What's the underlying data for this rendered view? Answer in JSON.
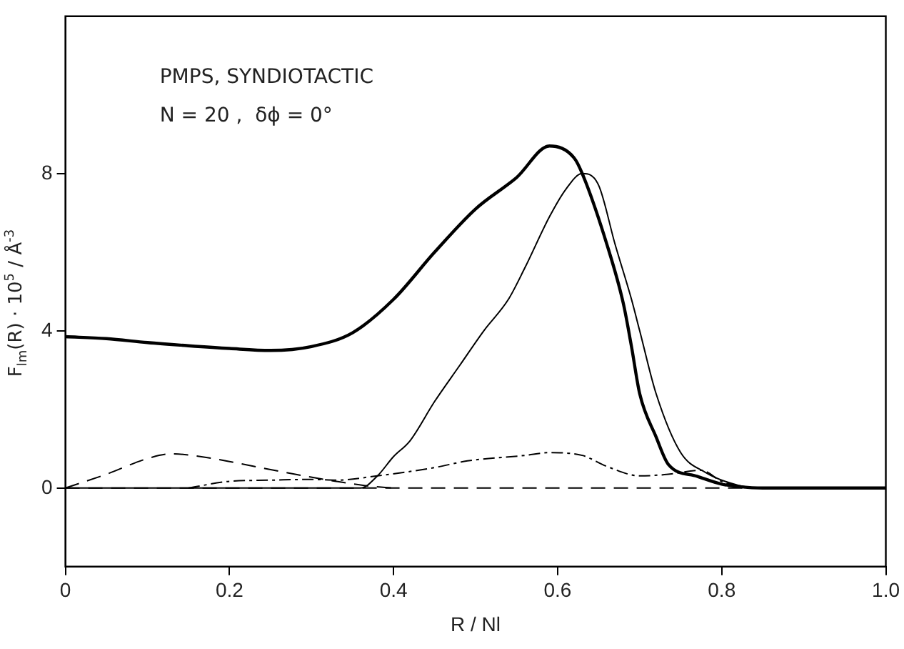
{
  "chart_data": {
    "type": "line",
    "xlabel": "R / Nl",
    "ylabel": "F$_{lm}$(R) · 10$^{5}$ / Å$^{-3}$",
    "annotations": [
      "PMPS, SYNDIOTACTIC",
      "N = 20 ,  δϕ = 0°"
    ],
    "series": [
      {
        "color": "#000000",
        "line_style": "solid",
        "x": [
          0,
          0.05,
          0.1,
          0.15,
          0.2,
          0.25,
          0.3,
          0.35,
          0.4,
          0.45,
          0.5,
          0.55,
          0.59,
          0.62,
          0.63,
          0.66,
          0.68,
          0.69,
          0.7,
          0.72,
          0.735,
          0.77,
          0.8,
          0.82,
          0.85,
          0.9,
          1.0
        ],
        "values": [
          3.85,
          3.8,
          3.7,
          3.62,
          3.55,
          3.5,
          3.6,
          3.95,
          4.8,
          6.0,
          7.1,
          7.9,
          8.7,
          8.4,
          8.0,
          6.2,
          4.7,
          3.6,
          2.4,
          1.3,
          0.6,
          0.3,
          0.1,
          0.04,
          0,
          0,
          0
        ]
      },
      {
        "color": "#000000",
        "line_style": "solid",
        "x": [
          0,
          0.2,
          0.36,
          0.38,
          0.4,
          0.42,
          0.45,
          0.48,
          0.51,
          0.54,
          0.56,
          0.59,
          0.61,
          0.63,
          0.65,
          0.67,
          0.69,
          0.7,
          0.72,
          0.75,
          0.78,
          0.82,
          0.85,
          1.0
        ],
        "values": [
          0,
          0,
          0,
          0.3,
          0.8,
          1.2,
          2.2,
          3.1,
          4.0,
          4.8,
          5.6,
          6.9,
          7.6,
          8.0,
          7.7,
          6.2,
          4.8,
          4.0,
          2.4,
          0.9,
          0.4,
          0.07,
          0,
          0
        ]
      },
      {
        "color": "#000000",
        "line_style": "dashed",
        "x": [
          0,
          0.05,
          0.1,
          0.13,
          0.18,
          0.23,
          0.28,
          0.33,
          0.37,
          0.4
        ],
        "values": [
          0,
          0.35,
          0.75,
          0.87,
          0.75,
          0.55,
          0.35,
          0.17,
          0.05,
          0
        ]
      },
      {
        "color": "#000000",
        "line_style": "dotted",
        "x": [
          0.15,
          0.2,
          0.25,
          0.3,
          0.33,
          0.38,
          0.45,
          0.49,
          0.56,
          0.59,
          0.63,
          0.66,
          0.7,
          0.73,
          0.775,
          0.8,
          0.83
        ],
        "values": [
          0,
          0.17,
          0.2,
          0.22,
          0.2,
          0.31,
          0.52,
          0.69,
          0.83,
          0.9,
          0.83,
          0.55,
          0.31,
          0.34,
          0.45,
          0.17,
          0
        ]
      }
    ],
    "ref_lines": [
      {
        "axis": "y",
        "value": 0,
        "line_style": "dashed",
        "color": "#000000"
      }
    ],
    "xlim": [
      0,
      1.0
    ],
    "xticks": [
      0,
      0.2,
      0.4,
      0.6,
      0.8,
      {
        "value": 1.0,
        "label": "1.0"
      }
    ],
    "ylim": [
      -2,
      12
    ],
    "yticks": [
      0,
      4,
      8
    ],
    "grid": false,
    "legend": false
  }
}
